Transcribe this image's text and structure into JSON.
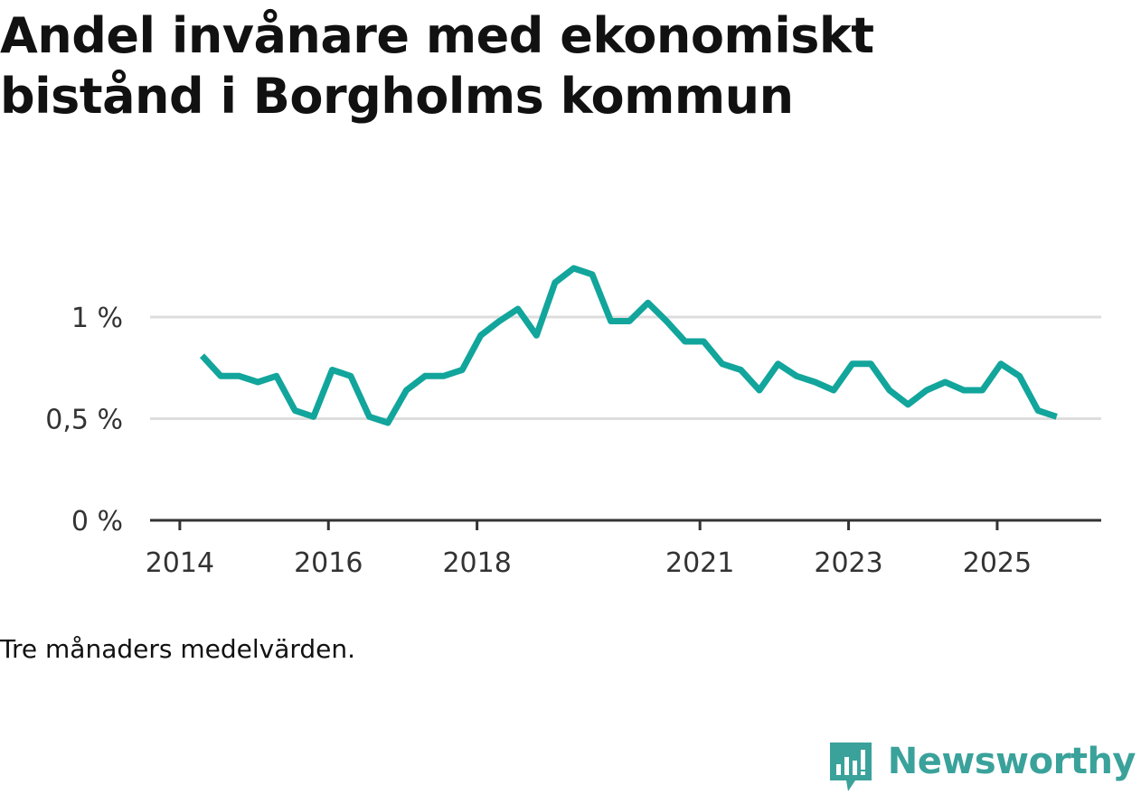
{
  "title": "Andel invånare med ekonomiskt bistånd i Borgholms kommun",
  "note": "Tre månaders medelvärden.",
  "brand": {
    "name": "Newsworthy",
    "logo_icon": "bar-chart-pin-icon"
  },
  "colors": {
    "line": "#12a59c",
    "grid": "#dddddd",
    "axis": "#333333",
    "brand": "#3aa29a"
  },
  "chart_data": {
    "type": "line",
    "title": "Andel invånare med ekonomiskt bistånd i Borgholms kommun",
    "xlabel": "",
    "ylabel": "",
    "grid": true,
    "ylim": [
      0,
      1.3
    ],
    "y_ticks": [
      {
        "value": 0,
        "label": "0 %"
      },
      {
        "value": 0.5,
        "label": "0,5 %"
      },
      {
        "value": 1,
        "label": "1 %"
      }
    ],
    "x_ticks": [
      {
        "value": 2014.0,
        "label": "2014"
      },
      {
        "value": 2016.0,
        "label": "2016"
      },
      {
        "value": 2018.0,
        "label": "2018"
      },
      {
        "value": 2021.0,
        "label": "2021"
      },
      {
        "value": 2023.0,
        "label": "2023"
      },
      {
        "value": 2025.0,
        "label": "2025"
      }
    ],
    "xlim": [
      2013.6,
      2026.4
    ],
    "series": [
      {
        "name": "Andel invånare med ekonomiskt bistånd",
        "x": [
          2014.3,
          2014.55,
          2014.8,
          2015.05,
          2015.3,
          2015.55,
          2015.8,
          2016.05,
          2016.3,
          2016.55,
          2016.8,
          2017.05,
          2017.3,
          2017.55,
          2017.8,
          2018.05,
          2018.3,
          2018.55,
          2018.8,
          2019.05,
          2019.3,
          2019.55,
          2019.8,
          2020.05,
          2020.3,
          2020.55,
          2020.8,
          2021.05,
          2021.3,
          2021.55,
          2021.8,
          2022.05,
          2022.3,
          2022.55,
          2022.8,
          2023.05,
          2023.3,
          2023.55,
          2023.8,
          2024.05,
          2024.3,
          2024.55,
          2024.8,
          2025.05,
          2025.3,
          2025.55,
          2025.8
        ],
        "values": [
          0.81,
          0.71,
          0.71,
          0.68,
          0.71,
          0.54,
          0.51,
          0.74,
          0.71,
          0.51,
          0.48,
          0.64,
          0.71,
          0.71,
          0.74,
          0.91,
          0.98,
          1.04,
          0.91,
          1.17,
          1.24,
          1.21,
          0.98,
          0.98,
          1.07,
          0.98,
          0.88,
          0.88,
          0.77,
          0.74,
          0.64,
          0.77,
          0.71,
          0.68,
          0.64,
          0.77,
          0.77,
          0.64,
          0.57,
          0.64,
          0.68,
          0.64,
          0.64,
          0.77,
          0.71,
          0.54,
          0.51
        ]
      }
    ]
  }
}
